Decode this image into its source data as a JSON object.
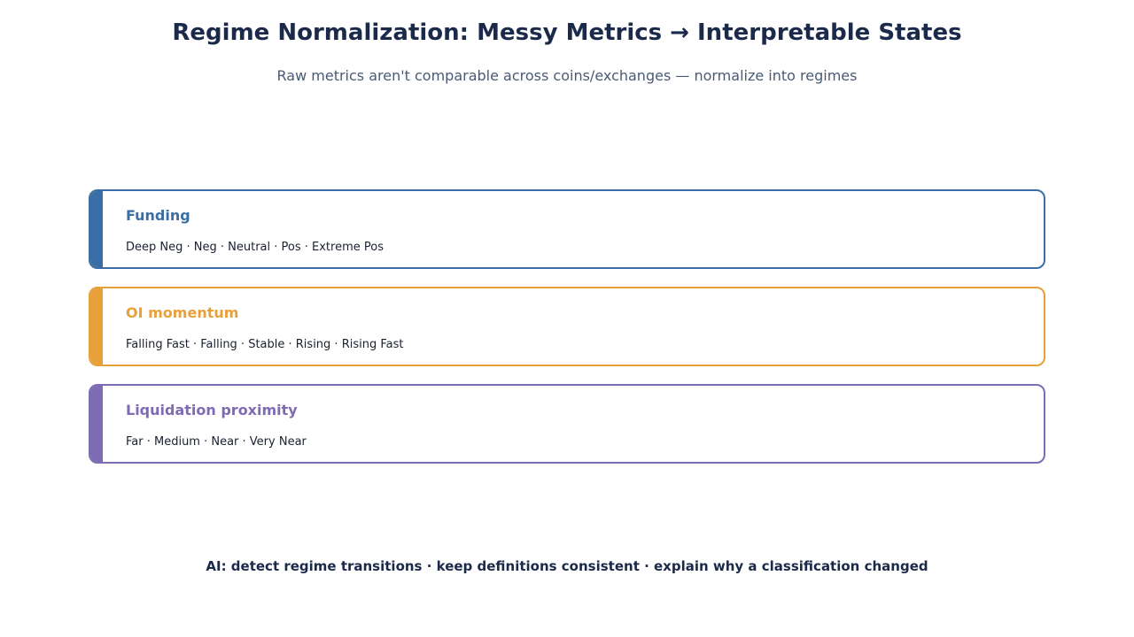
{
  "header": {
    "title": "Regime Normalization: Messy Metrics → Interpretable States",
    "subtitle": "Raw metrics aren't comparable across coins/exchanges — normalize into regimes"
  },
  "cards": [
    {
      "title": "Funding",
      "states": "Deep Neg · Neg · Neutral · Pos · Extreme Pos",
      "color": "#3a6ea5"
    },
    {
      "title": "OI momentum",
      "states": "Falling Fast · Falling · Stable · Rising · Rising Fast",
      "color": "#e8a03a"
    },
    {
      "title": "Liquidation proximity",
      "states": "Far · Medium · Near · Very Near",
      "color": "#7d6bb3"
    }
  ],
  "footer": "AI: detect regime transitions · keep definitions consistent · explain why a classification changed"
}
